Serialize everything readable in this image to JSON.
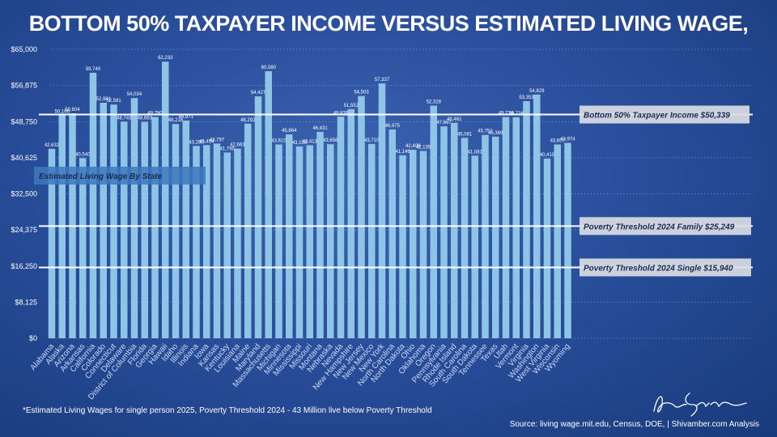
{
  "title": "BOTTOM 50% TAXPAYER INCOME VERSUS ESTIMATED LIVING WAGE,",
  "footnote": "*Estimated Living Wages for single person 2025, Poverty Threshold 2024 - 43 Million live below Poverty Threshold",
  "source": "Source: living wage.mit.edu, Census, DOE,  | Shivamber.com Analysis",
  "colors": {
    "bar": "#8ec5e6",
    "reference_line": "#ffffff",
    "reference_box": "#d9dde3",
    "series_box": "#3d79bd"
  },
  "chart_data": {
    "type": "bar",
    "series_label": "Estimated Living Wage By State",
    "categories": [
      "Alabama",
      "Alaska",
      "Arizona",
      "Arkansas",
      "California",
      "Colorado",
      "Connecticut",
      "Delaware",
      "District of Columbia",
      "Florida",
      "Georgia",
      "Hawaii",
      "Idaho",
      "Illinois",
      "Indiana",
      "Iowa",
      "Kansas",
      "Kentucky",
      "Louisiana",
      "Maine",
      "Maryland",
      "Massachusetts",
      "Michigan",
      "Minnesota",
      "Mississippi",
      "Missouri",
      "Montana",
      "Nebraska",
      "Nevada",
      "New Hampshire",
      "New Jersey",
      "New Mexico",
      "New York",
      "North Carolina",
      "North Dakota",
      "Ohio",
      "Oklahoma",
      "Oregon",
      "Pennsylvania",
      "Rhode Island",
      "South Carolina",
      "South Dakota",
      "Tennessee",
      "Texas",
      "Utah",
      "Vermont",
      "Virginia",
      "Washington",
      "West Virginia",
      "Wisconsin",
      "Wyoming"
    ],
    "values": [
      42632,
      50166,
      50604,
      40540,
      59740,
      52981,
      52581,
      48743,
      54034,
      48683,
      49790,
      62233,
      48216,
      48971,
      43280,
      43454,
      43797,
      41795,
      42663,
      48292,
      54427,
      60080,
      43610,
      45864,
      43159,
      43413,
      46431,
      43656,
      49839,
      51552,
      54503,
      43710,
      57337,
      46975,
      41146,
      42409,
      42135,
      52328,
      47667,
      48461,
      45081,
      41081,
      45751,
      45369,
      49774,
      49726,
      53353,
      54829,
      40415,
      43607,
      43974
    ],
    "data_labels": [
      "42,632",
      "50,166",
      "50,604",
      "40,540",
      "59,740",
      "52,981",
      "52,581",
      "48,743",
      "54,034",
      "48,683",
      "49,790",
      "62,233",
      "48,216",
      "48,971",
      "43,280",
      "43,454",
      "43,797",
      "41,795",
      "42,663",
      "48,292",
      "54,427",
      "60,080",
      "43,610",
      "45,864",
      "43,159",
      "43,413",
      "46,431",
      "43,656",
      "49,839",
      "51,552",
      "54,503",
      "43,710",
      "57,337",
      "46,975",
      "41,146",
      "42,409",
      "42,135",
      "52,328",
      "47,667",
      "48,461",
      "45,081",
      "41,081",
      "45,751",
      "45,369",
      "49,774",
      "49,726",
      "53,353",
      "54,829",
      "40,415",
      "43,607",
      "43,974"
    ],
    "reference_lines": [
      {
        "label": "Bottom 50% Taxpayer Income $50,339",
        "value": 50339
      },
      {
        "label": "Poverty Threshold 2024 Family $25,249",
        "value": 25249
      },
      {
        "label": "Poverty Threshold 2024 Single $15,940",
        "value": 15940
      }
    ],
    "yticks": [
      "$0",
      "$8,125",
      "$16,250",
      "$24,375",
      "$32,500",
      "$40,625",
      "$48,750",
      "$56,875",
      "$65,000"
    ],
    "ylim": [
      0,
      65000
    ],
    "grid": true,
    "xlabel": "",
    "ylabel": ""
  }
}
